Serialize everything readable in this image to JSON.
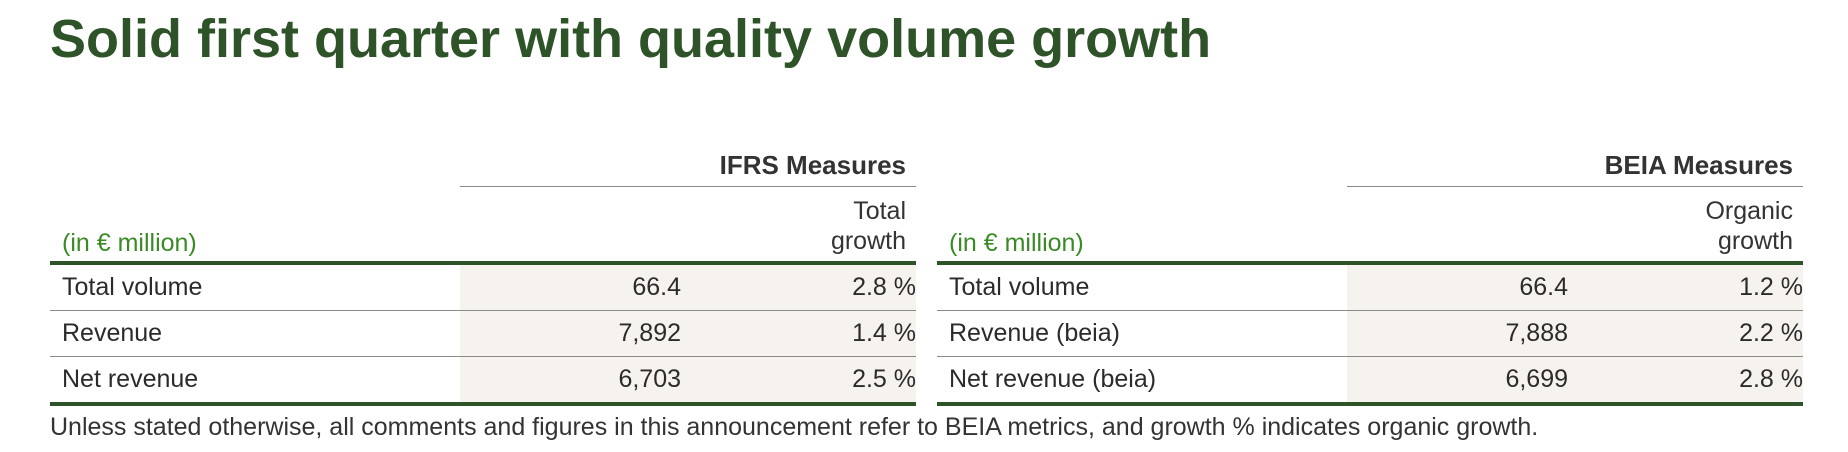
{
  "title": "Solid first quarter with quality volume growth",
  "ifrs": {
    "group_header": "IFRS Measures",
    "unit_label": "(in € million)",
    "growth_header_line1": "Total",
    "growth_header_line2": "growth",
    "rows": [
      {
        "label": "Total volume",
        "value": "66.4",
        "growth": "2.8 %"
      },
      {
        "label": "Revenue",
        "value": "7,892",
        "growth": "1.4 %"
      },
      {
        "label": "Net revenue",
        "value": "6,703",
        "growth": "2.5 %"
      }
    ]
  },
  "beia": {
    "group_header": "BEIA Measures",
    "unit_label": "(in € million)",
    "growth_header_line1": "Organic",
    "growth_header_line2": "growth",
    "rows": [
      {
        "label": "Total volume",
        "value": "66.4",
        "growth": "1.2 %"
      },
      {
        "label": "Revenue (beia)",
        "value": "7,888",
        "growth": "2.2 %"
      },
      {
        "label": "Net revenue (beia)",
        "value": "6,699",
        "growth": "2.8 %"
      }
    ]
  },
  "footnote": "Unless stated otherwise, all comments and figures in this announcement refer to BEIA metrics, and growth % indicates organic growth.",
  "colors": {
    "title": "#2e5328",
    "unit_label": "#3a8a25",
    "rule": "#2e5328",
    "shade": "#f6f3ee"
  }
}
